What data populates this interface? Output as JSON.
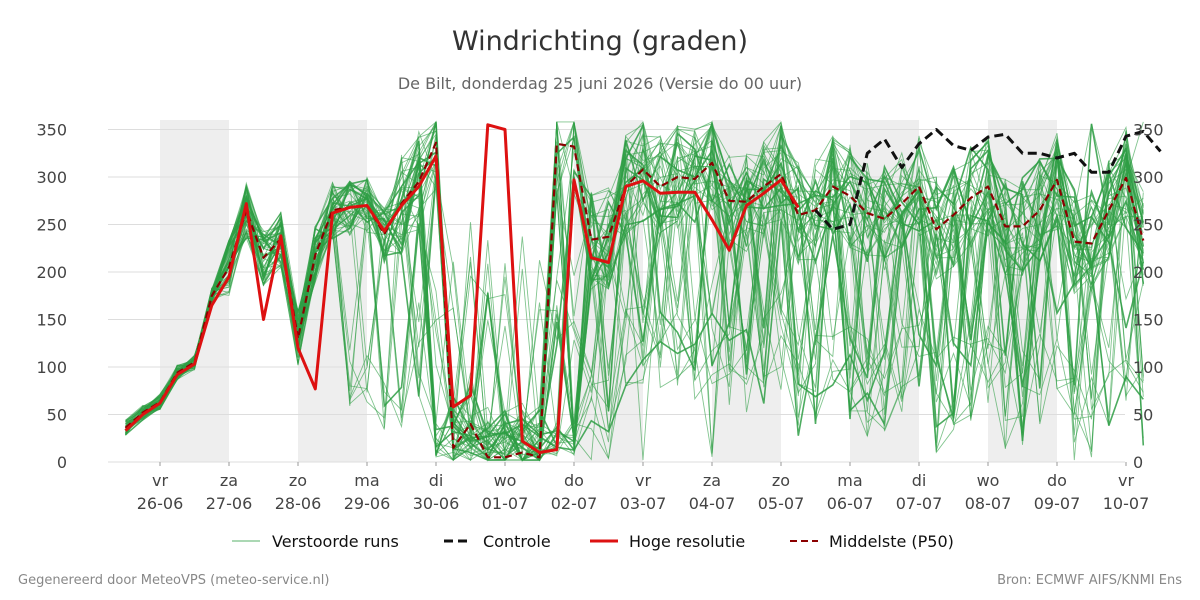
{
  "chart_data": {
    "type": "line",
    "title": "Windrichting (graden)",
    "subtitle": "De Bilt, donderdag 25 juni 2026 (Versie do 00 uur)",
    "xlabel": "",
    "ylabel": "",
    "ylim": [
      0,
      360
    ],
    "yticks": [
      0,
      50,
      100,
      150,
      200,
      250,
      300,
      350
    ],
    "x_start": "2026-06-25 12:00",
    "x_step_hours": 6,
    "x_ticks": [
      {
        "day": "vr",
        "date": "26-06"
      },
      {
        "day": "za",
        "date": "27-06"
      },
      {
        "day": "zo",
        "date": "28-06"
      },
      {
        "day": "ma",
        "date": "29-06"
      },
      {
        "day": "di",
        "date": "30-06"
      },
      {
        "day": "wo",
        "date": "01-07"
      },
      {
        "day": "do",
        "date": "02-07"
      },
      {
        "day": "vr",
        "date": "03-07"
      },
      {
        "day": "za",
        "date": "04-07"
      },
      {
        "day": "zo",
        "date": "05-07"
      },
      {
        "day": "ma",
        "date": "06-07"
      },
      {
        "day": "di",
        "date": "07-07"
      },
      {
        "day": "wo",
        "date": "08-07"
      },
      {
        "day": "do",
        "date": "09-07"
      },
      {
        "day": "vr",
        "date": "10-07"
      }
    ],
    "shaded_days": [
      "26-06",
      "28-06",
      "02-07",
      "04-07",
      "06-07",
      "08-07"
    ],
    "grid": true,
    "legend_position": "bottom",
    "colors": {
      "perturbed": "#2e9e44",
      "control": "#111111",
      "high_res": "#dd1111",
      "median": "#8b0000",
      "shade": "#eeeeee",
      "grid": "#dddddd"
    },
    "series": [
      {
        "name": "Hoge resolutie",
        "style": "solid-red",
        "values": [
          33,
          50,
          62,
          92,
          103,
          165,
          195,
          272,
          150,
          238,
          120,
          77,
          262,
          268,
          270,
          243,
          270,
          290,
          322,
          58,
          70,
          355,
          350,
          22,
          10,
          13,
          297,
          215,
          210,
          290,
          296,
          283,
          284,
          284,
          255,
          223,
          270,
          283,
          297,
          268
        ]
      },
      {
        "name": "Middelste (P50)",
        "style": "dashed-darkred",
        "values": [
          36,
          52,
          63,
          94,
          105,
          175,
          205,
          265,
          215,
          235,
          130,
          218,
          265,
          268,
          270,
          240,
          272,
          295,
          336,
          15,
          40,
          5,
          5,
          10,
          5,
          335,
          332,
          234,
          237,
          290,
          308,
          290,
          300,
          298,
          315,
          275,
          274,
          290,
          303,
          260,
          265,
          290,
          280,
          262,
          256,
          272,
          290,
          245,
          260,
          278,
          290,
          248,
          248,
          265,
          297,
          232,
          230,
          265,
          299,
          233
        ]
      },
      {
        "name": "Controle",
        "style": "dashed-black",
        "from_index": 40,
        "values": [
          265,
          245,
          250,
          325,
          340,
          310,
          335,
          350,
          333,
          328,
          342,
          345,
          325,
          325,
          320,
          325,
          305,
          305,
          343,
          348,
          327
        ]
      }
    ]
  },
  "legend": {
    "perturbed": "Verstoorde runs",
    "control": "Controle",
    "high_res": "Hoge resolutie",
    "median": "Middelste (P50)"
  },
  "footer": {
    "left": "Gegenereerd door MeteoVPS (meteo-service.nl)",
    "right": "Bron: ECMWF AIFS/KNMI Ens"
  }
}
